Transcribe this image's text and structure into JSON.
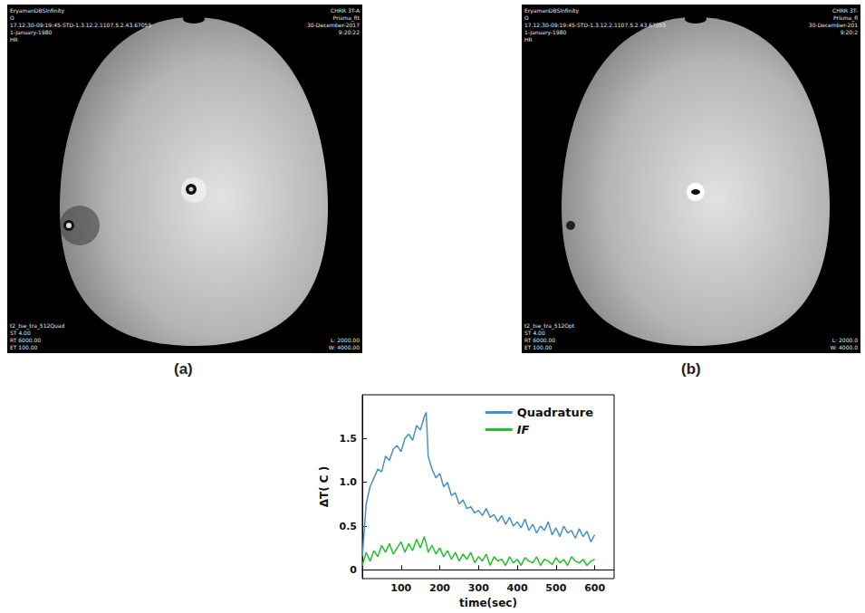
{
  "panels": [
    {
      "label": "(a)",
      "overlay": {
        "top_left": [
          "EryamanDBSInfinity",
          "O",
          "17.12.30-09:19:45-STD-1.3.12.2.1107.5.2.43.67055",
          "1-January-1980",
          "HR"
        ],
        "top_right": [
          "CHRR 3T-A",
          "Prisma_fit",
          "30-December-2017",
          "9:20:22"
        ],
        "bottom_left": [
          "t2_tse_tra_512Quad",
          "ST 4.00",
          "RT 6000.00",
          "ET 100.00"
        ],
        "bottom_right": [
          "L: 2000.00",
          "W: 4000.00"
        ]
      }
    },
    {
      "label": "(b)",
      "overlay": {
        "top_left": [
          "EryamanDBSInfinity",
          "O",
          "17.12.30-09:19:45-STD-1.3.12.2.1107.5.2.43.67055",
          "1-January-1980",
          "HR"
        ],
        "top_right": [
          "CHRR 3T-",
          "Prisma_fi",
          "30-December-201",
          "9:20:2"
        ],
        "bottom_left": [
          "t2_tse_tra_512Opt",
          "ST 4.00",
          "RT 6000.00",
          "ET 100.00"
        ],
        "bottom_right": [
          "L: 2000.0",
          "W: 4000.0"
        ]
      }
    }
  ],
  "chart_data": {
    "type": "line",
    "x_label": "time(sec)",
    "y_label": "ΔT( C )",
    "x": [
      0,
      10,
      20,
      30,
      40,
      50,
      60,
      70,
      80,
      90,
      100,
      110,
      120,
      130,
      140,
      150,
      160,
      165,
      170,
      180,
      190,
      200,
      210,
      220,
      230,
      240,
      250,
      260,
      270,
      280,
      290,
      300,
      310,
      320,
      330,
      340,
      350,
      360,
      370,
      380,
      390,
      400,
      410,
      420,
      430,
      440,
      450,
      460,
      470,
      480,
      490,
      500,
      510,
      520,
      530,
      540,
      550,
      560,
      570,
      580,
      590,
      600
    ],
    "series": [
      {
        "name": "Quadrature",
        "color": "#4a90c8",
        "values": [
          0.15,
          0.75,
          0.95,
          1.05,
          1.15,
          1.12,
          1.3,
          1.25,
          1.38,
          1.42,
          1.35,
          1.5,
          1.55,
          1.48,
          1.65,
          1.6,
          1.75,
          1.8,
          1.3,
          1.15,
          1.05,
          1.1,
          0.95,
          1.0,
          0.85,
          0.88,
          0.75,
          0.8,
          0.7,
          0.72,
          0.65,
          0.68,
          0.62,
          0.7,
          0.6,
          0.63,
          0.55,
          0.62,
          0.52,
          0.6,
          0.5,
          0.55,
          0.48,
          0.58,
          0.45,
          0.52,
          0.42,
          0.5,
          0.45,
          0.55,
          0.4,
          0.48,
          0.38,
          0.5,
          0.42,
          0.45,
          0.36,
          0.47,
          0.38,
          0.44,
          0.32,
          0.4
        ]
      },
      {
        "name": "IF",
        "color": "#22c12a",
        "values": [
          0.05,
          0.2,
          0.1,
          0.22,
          0.15,
          0.28,
          0.2,
          0.3,
          0.18,
          0.25,
          0.32,
          0.2,
          0.3,
          0.22,
          0.35,
          0.25,
          0.38,
          0.3,
          0.2,
          0.28,
          0.18,
          0.25,
          0.15,
          0.22,
          0.12,
          0.2,
          0.1,
          0.18,
          0.12,
          0.2,
          0.08,
          0.15,
          0.1,
          0.18,
          0.05,
          0.15,
          0.1,
          0.12,
          0.05,
          0.15,
          0.08,
          0.12,
          0.05,
          0.14,
          0.1,
          0.08,
          0.15,
          0.05,
          0.12,
          0.1,
          0.06,
          0.14,
          0.08,
          0.12,
          0.05,
          0.15,
          0.1,
          0.08,
          0.12,
          0.05,
          0.1,
          0.12
        ]
      }
    ],
    "xlim": [
      0,
      650
    ],
    "xticks": [
      100,
      200,
      300,
      400,
      500,
      600
    ],
    "ylim": [
      -0.1,
      2.0
    ],
    "yticks": [
      0,
      0.5,
      {
        "value": 1,
        "label": "1.0"
      },
      1.5
    ],
    "grid": false,
    "legend": "upper right"
  }
}
